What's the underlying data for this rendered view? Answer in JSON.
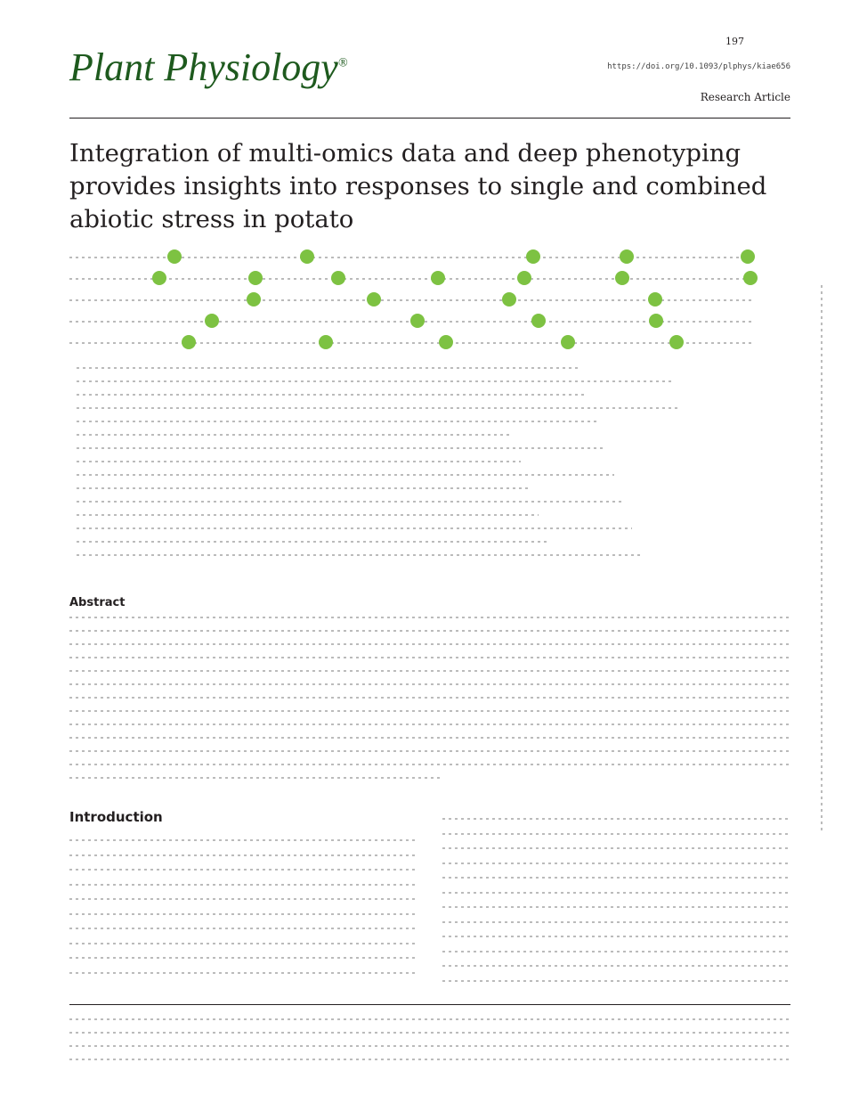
{
  "header": {
    "journal": "Plant Physiology",
    "volume": "197",
    "doi": "https://doi.org/10.1093/plphys/kiae656",
    "article_type": "Research Article"
  },
  "title": "Integration of multi-omics data and deep phenotyping provides insights into responses to single and combined abiotic stress in potato",
  "sections": {
    "abstract": "Abstract",
    "introduction": "Introduction"
  }
}
